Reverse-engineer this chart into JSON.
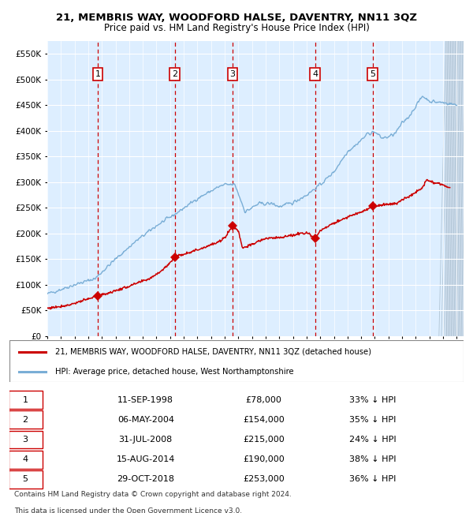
{
  "title": "21, MEMBRIS WAY, WOODFORD HALSE, DAVENTRY, NN11 3QZ",
  "subtitle": "Price paid vs. HM Land Registry's House Price Index (HPI)",
  "legend_line1": "21, MEMBRIS WAY, WOODFORD HALSE, DAVENTRY, NN11 3QZ (detached house)",
  "legend_line2": "HPI: Average price, detached house, West Northamptonshire",
  "footer1": "Contains HM Land Registry data © Crown copyright and database right 2024.",
  "footer2": "This data is licensed under the Open Government Licence v3.0.",
  "ylim": [
    0,
    575000
  ],
  "yticks": [
    0,
    50000,
    100000,
    150000,
    200000,
    250000,
    300000,
    350000,
    400000,
    450000,
    500000,
    550000
  ],
  "ytick_labels": [
    "£0",
    "£50K",
    "£100K",
    "£150K",
    "£200K",
    "£250K",
    "£300K",
    "£350K",
    "£400K",
    "£450K",
    "£500K",
    "£550K"
  ],
  "bg_color": "#ddeeff",
  "grid_color": "#ffffff",
  "red_line_color": "#cc0000",
  "blue_line_color": "#7aaed6",
  "vline_color": "#cc0000",
  "sale_points": [
    {
      "year": 1998.69,
      "price": 78000,
      "label": "1"
    },
    {
      "year": 2004.34,
      "price": 154000,
      "label": "2"
    },
    {
      "year": 2008.58,
      "price": 215000,
      "label": "3"
    },
    {
      "year": 2014.62,
      "price": 190000,
      "label": "4"
    },
    {
      "year": 2018.83,
      "price": 253000,
      "label": "5"
    }
  ],
  "table_data": [
    [
      "1",
      "11-SEP-1998",
      "£78,000",
      "33% ↓ HPI"
    ],
    [
      "2",
      "06-MAY-2004",
      "£154,000",
      "35% ↓ HPI"
    ],
    [
      "3",
      "31-JUL-2008",
      "£215,000",
      "24% ↓ HPI"
    ],
    [
      "4",
      "15-AUG-2014",
      "£190,000",
      "38% ↓ HPI"
    ],
    [
      "5",
      "29-OCT-2018",
      "£253,000",
      "36% ↓ HPI"
    ]
  ],
  "xmin": 1995.0,
  "xmax": 2025.5,
  "hpi_anchors_t": [
    1995.0,
    1997.0,
    1998.5,
    2000.0,
    2001.5,
    2003.0,
    2004.5,
    2006.0,
    2007.5,
    2008.0,
    2008.75,
    2009.5,
    2010.5,
    2011.5,
    2012.0,
    2013.0,
    2014.0,
    2015.0,
    2016.0,
    2017.0,
    2017.5,
    2018.0,
    2018.5,
    2019.0,
    2019.5,
    2020.0,
    2020.5,
    2021.0,
    2021.5,
    2022.0,
    2022.5,
    2023.0,
    2023.5,
    2024.0,
    2024.5,
    2025.0
  ],
  "hpi_anchors_v": [
    82000,
    100000,
    112000,
    150000,
    185000,
    215000,
    240000,
    268000,
    290000,
    295000,
    295000,
    242000,
    258000,
    258000,
    252000,
    260000,
    275000,
    295000,
    320000,
    360000,
    370000,
    382000,
    395000,
    398000,
    386000,
    388000,
    395000,
    415000,
    428000,
    448000,
    468000,
    458000,
    456000,
    455000,
    453000,
    450000
  ],
  "red_anchors_t": [
    1995.0,
    1996.5,
    1998.0,
    1998.69,
    1999.5,
    2001.0,
    2002.5,
    2003.5,
    2004.0,
    2004.34,
    2005.0,
    2006.0,
    2007.0,
    2007.5,
    2008.0,
    2008.58,
    2009.0,
    2009.3,
    2010.0,
    2010.5,
    2011.0,
    2012.0,
    2013.0,
    2013.5,
    2014.0,
    2014.62,
    2015.0,
    2016.0,
    2017.0,
    2018.0,
    2018.5,
    2018.83,
    2019.5,
    2020.5,
    2021.0,
    2021.5,
    2022.0,
    2022.5,
    2022.8,
    2023.0,
    2023.5,
    2024.0,
    2024.5
  ],
  "red_anchors_v": [
    54000,
    60000,
    72000,
    78000,
    84000,
    97000,
    112000,
    130000,
    143000,
    154000,
    160000,
    168000,
    178000,
    182000,
    192000,
    215000,
    205000,
    172000,
    178000,
    185000,
    190000,
    192000,
    196000,
    200000,
    202000,
    190000,
    205000,
    220000,
    232000,
    242000,
    248000,
    253000,
    255000,
    258000,
    265000,
    272000,
    280000,
    290000,
    305000,
    302000,
    298000,
    294000,
    290000
  ]
}
